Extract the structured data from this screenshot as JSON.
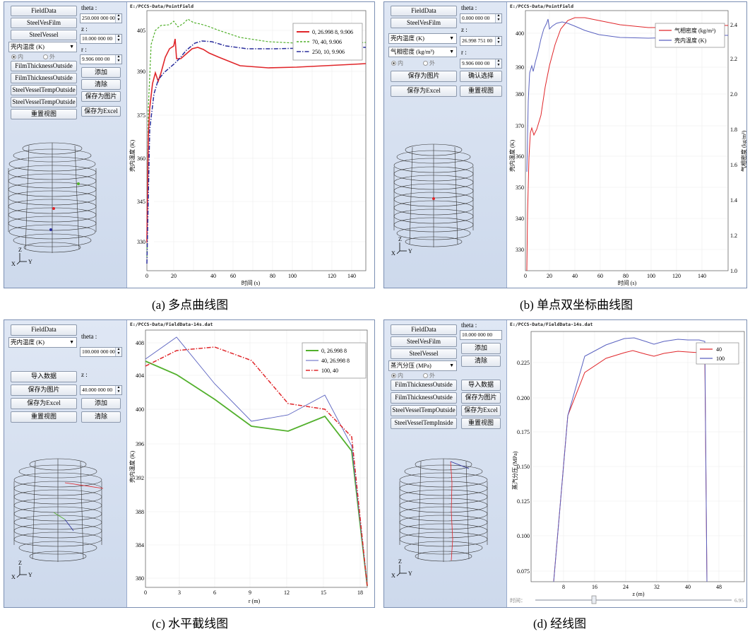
{
  "a": {
    "path": "E:/PCCS-Data/PointField",
    "buttons": {
      "fielddata": "FieldData",
      "steelvesfilm": "SteelVesFilm",
      "steelvessel": "SteelVessel",
      "film_thickness_outside_1": "FilmThicknessOutside",
      "film_thickness_outside_2": "FilmThicknessOutside",
      "steel_vessel_temp_outside_1": "SteelVesselTempOutside",
      "steel_vessel_temp_outside_2": "SteelVesselTempOutside",
      "reset": "重置视图",
      "add": "添加",
      "clear": "清除",
      "save_image": "保存为图片",
      "save_excel": "保存为Excel"
    },
    "combo": "壳内温度 (K)",
    "radio_in": "内",
    "radio_out": "外",
    "theta_label": "theta :",
    "theta_value": "250.000 000 00",
    "z_label": "z :",
    "z_value": "10.000 000 00",
    "r_label": "r :",
    "r_value": "9.906 000 00",
    "ylabel": "壳内温度 (K)",
    "xlabel": "时间 (s)",
    "yticks": [
      "405",
      "390",
      "375",
      "360",
      "345",
      "330"
    ],
    "xticks": [
      "0",
      "20",
      "40",
      "60",
      "80",
      "100",
      "120",
      "140"
    ],
    "legend": [
      "0, 26.998 8, 9.906",
      "70, 40, 9.906",
      "250, 10, 9.906"
    ],
    "axis_labels": [
      "Z",
      "X",
      "Y"
    ],
    "caption": "(a)  多点曲线图"
  },
  "b": {
    "path": "E:/PCCS-Data/PointField",
    "buttons": {
      "fielddata": "FieldData",
      "steelvesfilm": "SteelVesFilm",
      "save_image": "保存为图片",
      "confirm": "确认选择",
      "save_excel": "保存为Excel",
      "reset": "重置视图"
    },
    "combo1": "壳内温度 (K)",
    "combo2": "气相密度 (kg/m³)",
    "radio_in": "内",
    "radio_out": "外",
    "theta_label": "theta :",
    "theta_value": "0.000 000 00",
    "z_label": "z :",
    "z_value": "26.998 751 00",
    "r_label": "r :",
    "r_value": "9.906 000 00",
    "ylabel": "壳内温度 (K)",
    "y2label": "气相密度 (kg/m³)",
    "xlabel": "时间 (s)",
    "yticks": [
      "400",
      "390",
      "380",
      "370",
      "360",
      "350",
      "340",
      "330"
    ],
    "y2ticks": [
      "2.4",
      "2.2",
      "2.0",
      "1.8",
      "1.6",
      "1.4",
      "1.2",
      "1.0"
    ],
    "xticks": [
      "0",
      "20",
      "40",
      "60",
      "80",
      "100",
      "120",
      "140"
    ],
    "legend": [
      "气相密度 (kg/m³)",
      "壳内温度 (K)"
    ],
    "axis_labels": [
      "Z",
      "X",
      "Y"
    ],
    "caption": "(b)  单点双坐标曲线图"
  },
  "c": {
    "path": "E:/PCCS-Data/FieldData-14s.dat",
    "buttons": {
      "fielddata": "FieldData",
      "import": "导入数据",
      "save_image": "保存为图片",
      "save_excel": "保存为Excel",
      "reset": "重置视图",
      "add": "添加",
      "clear": "清除"
    },
    "combo": "壳内温度 (K)",
    "theta_label": "theta :",
    "theta_value": "100.000 000 00",
    "z_label": "z :",
    "z_value": "40.000 000 00",
    "ylabel": "壳内温度 (K)",
    "xlabel": "r (m)",
    "yticks": [
      "408",
      "404",
      "400",
      "396",
      "392",
      "388",
      "384",
      "380"
    ],
    "xticks": [
      "0",
      "3",
      "6",
      "9",
      "12",
      "15",
      "18"
    ],
    "legend": [
      "0, 26.998 8",
      "40, 26.998 8",
      "100, 40"
    ],
    "axis_labels": [
      "Z",
      "X",
      "Y"
    ],
    "caption": "(c)  水平截线图"
  },
  "d": {
    "path": "E:/PCCS-Data/FieldData-14s.dat",
    "buttons": {
      "fielddata": "FieldData",
      "steelvesfilm": "SteelVesFilm",
      "steelvessel": "SteelVessel",
      "film_thickness_outside_1": "FilmThicknessOutside",
      "film_thickness_outside_2": "FilmThicknessOutside",
      "steel_vessel_temp_outside": "SteelVesselTempOutside",
      "steel_vessel_temp_inside": "SteelVesselTempInside",
      "add": "添加",
      "clear": "清除",
      "import": "导入数据",
      "save_image": "保存为图片",
      "save_excel": "保存为Excel",
      "reset": "重置视图"
    },
    "combo": "蒸汽分压 (MPa)",
    "radio_in": "内",
    "radio_out": "外",
    "theta_label": "theta :",
    "theta_value": "10.000 000 00",
    "ylabel": "蒸汽分压 (MPa)",
    "xlabel": "z (m)",
    "yticks": [
      "0.225",
      "0.200",
      "0.175",
      "0.150",
      "0.125",
      "0.100",
      "0.075"
    ],
    "xticks": [
      "8",
      "16",
      "24",
      "32",
      "40",
      "48"
    ],
    "legend": [
      "40",
      "100"
    ],
    "time_label": "时间：",
    "time_value": "6.95",
    "axis_labels": [
      "Z",
      "X",
      "Y"
    ],
    "caption": "(d)  经线图"
  },
  "colors": {
    "red": "#e0262a",
    "green": "#52b02c",
    "blue": "#2a2e9c",
    "red_dash": "#e0262a",
    "mid_blue": "#5a62c0"
  }
}
